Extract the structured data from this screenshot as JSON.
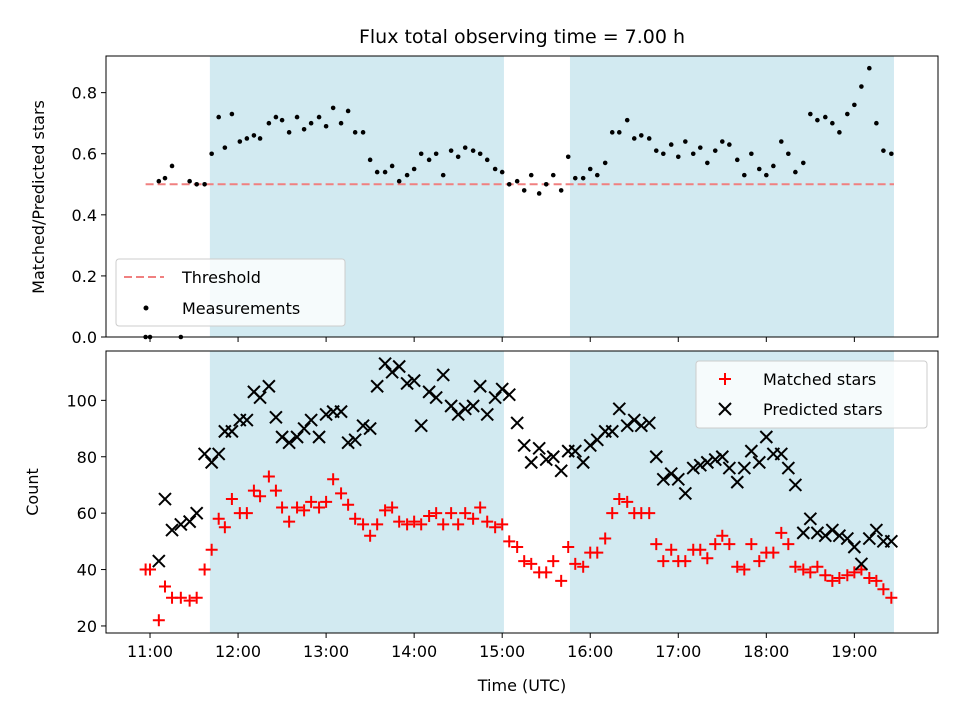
{
  "chart_data": {
    "title": "Flux total observing time = 7.00 h",
    "xlabel": "Time (UTC)",
    "x_unit": "hours UTC",
    "x_range": [
      10.5,
      19.95
    ],
    "x_ticks": [
      {
        "value": 11,
        "label": "11:00"
      },
      {
        "value": 12,
        "label": "12:00"
      },
      {
        "value": 13,
        "label": "13:00"
      },
      {
        "value": 14,
        "label": "14:00"
      },
      {
        "value": 15,
        "label": "15:00"
      },
      {
        "value": 16,
        "label": "16:00"
      },
      {
        "value": 17,
        "label": "17:00"
      },
      {
        "value": 18,
        "label": "18:00"
      },
      {
        "value": 19,
        "label": "19:00"
      }
    ],
    "shaded_intervals": [
      [
        11.68,
        15.02
      ],
      [
        15.77,
        19.45
      ]
    ],
    "shade_color": "#add8e6",
    "panels": [
      {
        "type": "scatter",
        "ylabel": "Matched/Predicted stars",
        "ylim": [
          0,
          0.92
        ],
        "y_ticks": [
          "0.0",
          "0.2",
          "0.4",
          "0.6",
          "0.8"
        ],
        "legend_position": "lower-left",
        "threshold": {
          "name": "Threshold",
          "value": 0.5,
          "x_range": [
            10.95,
            19.45
          ],
          "color": "#f08080",
          "style": "dashed"
        },
        "series": [
          {
            "name": "Measurements",
            "marker": "dot",
            "color": "#000000",
            "x": [
              10.95,
              11.0,
              11.1,
              11.17,
              11.25,
              11.35,
              11.45,
              11.53,
              11.62,
              11.7,
              11.78,
              11.85,
              11.93,
              12.02,
              12.1,
              12.18,
              12.25,
              12.35,
              12.43,
              12.5,
              12.58,
              12.67,
              12.75,
              12.83,
              12.92,
              13.0,
              13.08,
              13.17,
              13.25,
              13.33,
              13.42,
              13.5,
              13.58,
              13.67,
              13.75,
              13.83,
              13.92,
              14.0,
              14.08,
              14.17,
              14.25,
              14.33,
              14.42,
              14.5,
              14.58,
              14.67,
              14.75,
              14.83,
              14.92,
              15.0,
              15.08,
              15.17,
              15.25,
              15.33,
              15.42,
              15.5,
              15.58,
              15.67,
              15.75,
              15.83,
              15.92,
              16.0,
              16.08,
              16.17,
              16.25,
              16.33,
              16.42,
              16.5,
              16.58,
              16.67,
              16.75,
              16.83,
              16.92,
              17.0,
              17.08,
              17.17,
              17.25,
              17.33,
              17.42,
              17.5,
              17.58,
              17.67,
              17.75,
              17.83,
              17.92,
              18.0,
              18.08,
              18.17,
              18.25,
              18.33,
              18.42,
              18.5,
              18.58,
              18.67,
              18.75,
              18.83,
              18.92,
              19.0,
              19.08,
              19.17,
              19.25,
              19.33,
              19.42
            ],
            "y": [
              0.0,
              0.0,
              0.51,
              0.52,
              0.56,
              0.0,
              0.51,
              0.5,
              0.5,
              0.6,
              0.72,
              0.62,
              0.73,
              0.64,
              0.65,
              0.66,
              0.65,
              0.7,
              0.72,
              0.71,
              0.67,
              0.72,
              0.68,
              0.7,
              0.72,
              0.69,
              0.75,
              0.7,
              0.74,
              0.67,
              0.67,
              0.58,
              0.54,
              0.54,
              0.56,
              0.51,
              0.53,
              0.55,
              0.6,
              0.58,
              0.6,
              0.53,
              0.61,
              0.59,
              0.62,
              0.61,
              0.6,
              0.58,
              0.55,
              0.54,
              0.5,
              0.51,
              0.48,
              0.53,
              0.47,
              0.5,
              0.53,
              0.48,
              0.59,
              0.52,
              0.52,
              0.55,
              0.53,
              0.57,
              0.67,
              0.67,
              0.71,
              0.65,
              0.66,
              0.65,
              0.61,
              0.6,
              0.63,
              0.59,
              0.64,
              0.6,
              0.62,
              0.57,
              0.61,
              0.64,
              0.63,
              0.58,
              0.53,
              0.6,
              0.55,
              0.53,
              0.56,
              0.64,
              0.6,
              0.54,
              0.57,
              0.73,
              0.71,
              0.72,
              0.7,
              0.67,
              0.73,
              0.76,
              0.82,
              0.88,
              0.7,
              0.61,
              0.6
            ]
          }
        ]
      },
      {
        "type": "scatter",
        "ylabel": "Count",
        "ylim": [
          17.5,
          117.5
        ],
        "y_ticks": [
          "20",
          "40",
          "60",
          "80",
          "100"
        ],
        "legend_position": "upper-right",
        "series": [
          {
            "name": "Matched stars",
            "marker": "plus",
            "color": "#ff0000",
            "x": [
              10.95,
              11.0,
              11.1,
              11.17,
              11.25,
              11.35,
              11.45,
              11.53,
              11.62,
              11.7,
              11.78,
              11.85,
              11.93,
              12.02,
              12.1,
              12.18,
              12.25,
              12.35,
              12.43,
              12.5,
              12.58,
              12.67,
              12.75,
              12.83,
              12.92,
              13.0,
              13.08,
              13.17,
              13.25,
              13.33,
              13.42,
              13.5,
              13.58,
              13.67,
              13.75,
              13.83,
              13.92,
              14.0,
              14.08,
              14.17,
              14.25,
              14.33,
              14.42,
              14.5,
              14.58,
              14.67,
              14.75,
              14.83,
              14.92,
              15.0,
              15.08,
              15.17,
              15.25,
              15.33,
              15.42,
              15.5,
              15.58,
              15.67,
              15.75,
              15.83,
              15.92,
              16.0,
              16.08,
              16.17,
              16.25,
              16.33,
              16.42,
              16.5,
              16.58,
              16.67,
              16.75,
              16.83,
              16.92,
              17.0,
              17.08,
              17.17,
              17.25,
              17.33,
              17.42,
              17.5,
              17.58,
              17.67,
              17.75,
              17.83,
              17.92,
              18.0,
              18.08,
              18.17,
              18.25,
              18.33,
              18.42,
              18.5,
              18.58,
              18.67,
              18.75,
              18.83,
              18.92,
              19.0,
              19.08,
              19.17,
              19.25,
              19.33,
              19.42
            ],
            "y": [
              40,
              40,
              22,
              34,
              30,
              30,
              29,
              30,
              40,
              47,
              58,
              55,
              65,
              60,
              60,
              68,
              66,
              73,
              68,
              62,
              57,
              62,
              61,
              64,
              62,
              64,
              72,
              67,
              63,
              58,
              56,
              52,
              56,
              61,
              62,
              57,
              56,
              57,
              56,
              59,
              60,
              56,
              60,
              56,
              60,
              58,
              62,
              57,
              55,
              56,
              50,
              48,
              43,
              42,
              39,
              39,
              43,
              36,
              48,
              42,
              41,
              46,
              46,
              51,
              60,
              65,
              64,
              60,
              60,
              60,
              49,
              43,
              47,
              43,
              43,
              47,
              47,
              44,
              49,
              52,
              49,
              41,
              40,
              49,
              43,
              46,
              46,
              53,
              49,
              41,
              40,
              39,
              41,
              38,
              36,
              37,
              38,
              39,
              40,
              37,
              36,
              33,
              30
            ]
          },
          {
            "name": "Predicted stars",
            "marker": "x",
            "color": "#000000",
            "x": [
              11.1,
              11.17,
              11.25,
              11.35,
              11.45,
              11.53,
              11.62,
              11.7,
              11.78,
              11.85,
              11.93,
              12.02,
              12.1,
              12.18,
              12.25,
              12.35,
              12.43,
              12.5,
              12.58,
              12.67,
              12.75,
              12.83,
              12.92,
              13.0,
              13.08,
              13.17,
              13.25,
              13.33,
              13.42,
              13.5,
              13.58,
              13.67,
              13.75,
              13.83,
              13.92,
              14.0,
              14.08,
              14.17,
              14.25,
              14.33,
              14.42,
              14.5,
              14.58,
              14.67,
              14.75,
              14.83,
              14.92,
              15.0,
              15.08,
              15.17,
              15.25,
              15.33,
              15.42,
              15.5,
              15.58,
              15.67,
              15.75,
              15.83,
              15.92,
              16.0,
              16.08,
              16.17,
              16.25,
              16.33,
              16.42,
              16.5,
              16.58,
              16.67,
              16.75,
              16.83,
              16.92,
              17.0,
              17.08,
              17.17,
              17.25,
              17.33,
              17.42,
              17.5,
              17.58,
              17.67,
              17.75,
              17.83,
              17.92,
              18.0,
              18.08,
              18.17,
              18.25,
              18.33,
              18.42,
              18.5,
              18.58,
              18.67,
              18.75,
              18.83,
              18.92,
              19.0,
              19.08,
              19.17,
              19.25,
              19.33,
              19.42
            ],
            "y": [
              43,
              65,
              54,
              56,
              57,
              60,
              81,
              78,
              81,
              89,
              89,
              93,
              93,
              103,
              101,
              105,
              94,
              87,
              85,
              87,
              90,
              93,
              87,
              95,
              96,
              96,
              85,
              86,
              91,
              90,
              105,
              113,
              110,
              112,
              106,
              107,
              91,
              103,
              101,
              109,
              98,
              95,
              97,
              98,
              105,
              95,
              101,
              104,
              102,
              92,
              84,
              78,
              83,
              79,
              80,
              75,
              82,
              82,
              78,
              84,
              86,
              89,
              89,
              97,
              91,
              93,
              91,
              92,
              80,
              72,
              74,
              72,
              67,
              76,
              77,
              78,
              79,
              80,
              76,
              71,
              76,
              82,
              78,
              87,
              81,
              81,
              76,
              70,
              53,
              58,
              53,
              52,
              54,
              52,
              51,
              48,
              42,
              51,
              54,
              50,
              50
            ]
          }
        ]
      }
    ]
  }
}
